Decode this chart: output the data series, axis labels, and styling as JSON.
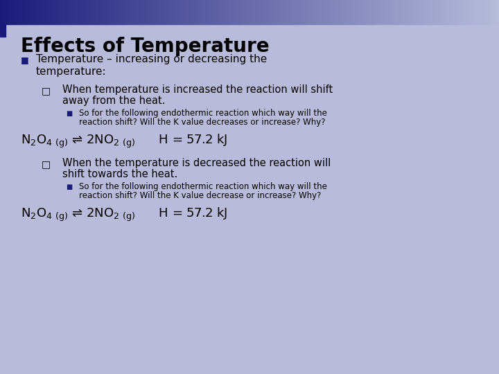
{
  "title": "Effects of Temperature",
  "bg_color": "#b8bcda",
  "title_color": "#000000",
  "title_fontsize": 20,
  "bullet1_color": "#1a1a7a",
  "bullet1_text_line1": "Temperature – increasing or decreasing the",
  "bullet1_text_line2": "temperature:",
  "bullet1_fontsize": 11,
  "sq1_text_line1": "When temperature is increased the reaction will shift",
  "sq1_text_line2": "away from the heat.",
  "sq_fontsize": 10.5,
  "sub_bullet_color": "#1a1a7a",
  "sub1_text_line1": "So for the following endothermic reaction which way will the",
  "sub1_text_line2": "reaction shift? Will the K value decreases or increase? Why?",
  "sub_fontsize": 8.5,
  "eq_fontsize": 13,
  "sq2_text_line1": "When the temperature is decreased the reaction will",
  "sq2_text_line2": "shift towards the heat.",
  "sub2_text_line1": "So for the following endothermic reaction which way will the",
  "sub2_text_line2": "reaction shift? Will the K value decrease or increase? Why?",
  "text_color": "#000000"
}
